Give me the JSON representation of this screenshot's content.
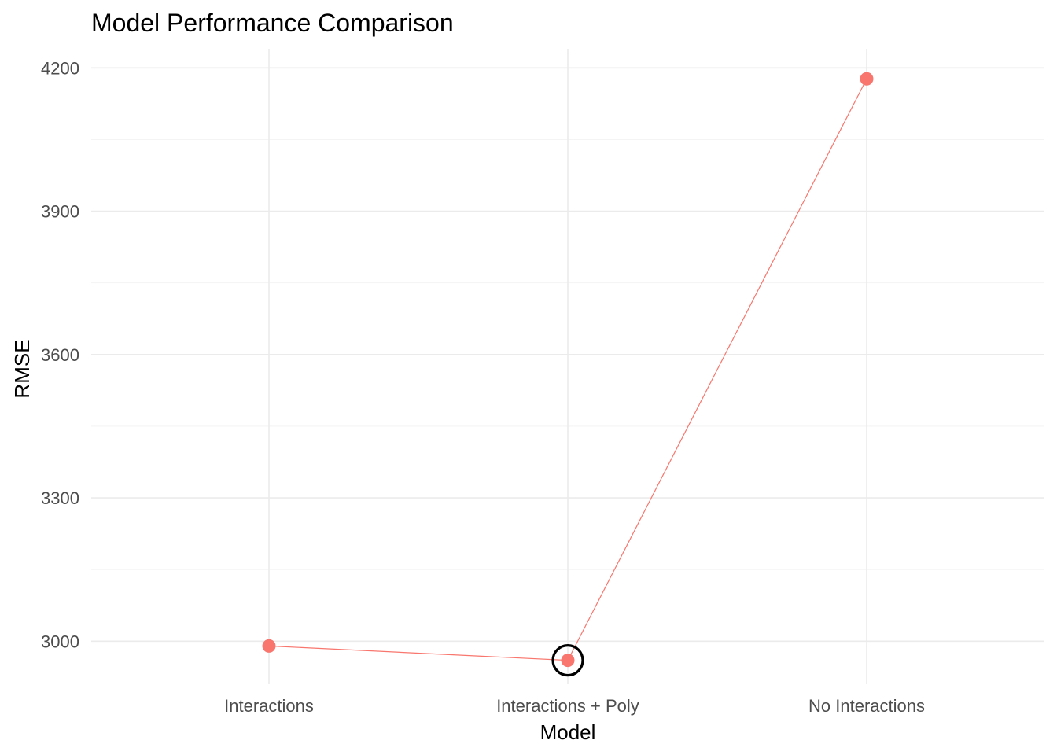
{
  "chart_data": {
    "type": "line",
    "title": "Model Performance Comparison",
    "xlabel": "Model",
    "ylabel": "RMSE",
    "categories": [
      "Interactions",
      "Interactions + Poly",
      "No Interactions"
    ],
    "values": [
      2990,
      2960,
      4177
    ],
    "ylim": [
      2910,
      4240
    ],
    "yticks": [
      3000,
      3300,
      3600,
      3900,
      4200
    ],
    "grid": true,
    "legend": "none",
    "highlighted_category": "Interactions + Poly",
    "colors": {
      "series": "#f8766d",
      "highlight_ring": "#000000"
    }
  }
}
